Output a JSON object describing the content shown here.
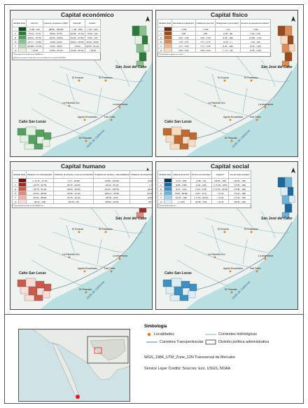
{
  "panels": [
    {
      "id": "eco",
      "title": "Capital económico",
      "table": {
        "headers": [
          "Variable\nNivel",
          "Ahorros*",
          "Ingresos monetarios (USD)*",
          "Vivienda*",
          "Crédito*"
        ],
        "rows": [
          {
            "level": "I",
            "color": "#0c4a1f",
            "cells": [
              "71.95 – 100",
              "(88.66 – 100.00)",
              "(< 60 – 100)",
              "(< 60 – 100)"
            ]
          },
          {
            "level": "II",
            "color": "#2d7b3c",
            "cells": [
              "57.04 – 71.79",
              "88.60 – 87.50",
              "(33.06 – 70.70)",
              "70.00 – 100"
            ]
          },
          {
            "level": "III",
            "color": "#56a062",
            "cells": [
              "(33.34 – 70.76)",
              "(40.50 – 58.00)",
              "(33.06 – 57.84)",
              "70.00 – 100"
            ]
          },
          {
            "level": "IV",
            "color": "#8ac28f",
            "cells": [
              "(12.77 – 71.05)",
              "32.89 – 64.00",
              "(30.00 – 40.50)",
              "30.00 – 54.00"
            ]
          },
          {
            "level": "V",
            "color": "#b8dcb9",
            "cells": [
              "(18.000 – 27.45)",
              "34.50 – 58.00",
              "< 25.00",
              "(40.50 – 51.12)"
            ]
          },
          {
            "level": "VI",
            "color": "#e2f2e1",
            "cells": [
              "< 12.00",
              "(70.50 – 32.76)",
              "(12.00 – 32.10)",
              "< 23.00"
            ]
          }
        ],
        "notes": [
          "*Porcentaje de la población de la AGEB con …",
          "Elaboración propia con datos del Censo de Población y Vivienda 2020 INEGI"
        ]
      },
      "ramp": [
        "#0c4a1f",
        "#2d7b3c",
        "#56a062",
        "#8ac28f",
        "#b8dcb9",
        "#e2f2e1"
      ]
    },
    {
      "id": "fis",
      "title": "Capital físico",
      "table": {
        "headers": [
          "Variable\nNivel",
          "Densidad de habitantes*",
          "Calidad de piso fino*",
          "Refrigerador (porcentaje)*",
          "Servicio de saneamiento básico*"
        ],
        "rows": [
          {
            "level": "I",
            "color": "#6b2d0c",
            "cells": [
              "> 5.00",
              "> 6.00",
              "> 10",
              "> 5.00"
            ]
          },
          {
            "level": "II",
            "color": "#9a4a1c",
            "cells": [
              "3.86",
              "3.86",
              "(1.35 – 95)",
              "1.00 – 2.00"
            ]
          },
          {
            "level": "III",
            "color": "#c06a32",
            "cells": [
              "3.00 – 3.48",
              "3.00 – 3.48",
              "(1.35 – 100)",
              "(1.502 – 1.00)"
            ]
          },
          {
            "level": "IV",
            "color": "#d98e5a",
            "cells": [
              "1.76 – 2.76",
              "1.77 – 2.76",
              "(1.25 – 1.)",
              "1.30 – 100"
            ]
          },
          {
            "level": "V",
            "color": "#ecb88e",
            "cells": [
              "1.77 – 4.25",
              "1.77 – 4.25",
              "(1.25 – 100)",
              "(0.75 – 1.20)"
            ]
          },
          {
            "level": "VI",
            "color": "#f8dcc2",
            "cells": [
              "0.63 – 0.20",
              "0.63 – 0.20",
              "(< 1.1 – 20)",
              "(1.25 – 1.30)"
            ]
          }
        ],
        "notes": [
          "*Promedio de ocupantes por cuarto …"
        ]
      },
      "ramp": [
        "#6b2d0c",
        "#9a4a1c",
        "#c06a32",
        "#d98e5a",
        "#ecb88e",
        "#f8dcc2"
      ]
    },
    {
      "id": "hum",
      "title": "Capital humano",
      "table": {
        "headers": [
          "Variable\nNivel",
          "Población con discapacidad*",
          "Población de 15 años y más sin escolaridad",
          "Población de 15 años y más analfabeta",
          "Población sin derechohabiencia a servicios de salud*"
        ],
        "rows": [
          {
            "level": "I",
            "color": "#7a1212",
            "cells": [
              "(< 10.75 – 11.76)",
              "(7.17 – 22.00)",
              "(23.86 – 100.00)",
              "(14.00 – 18.40)"
            ]
          },
          {
            "level": "II",
            "color": "#a52a2a",
            "cells": [
              "(10.75 – 50.78)",
              "(26.72 – 20.25)",
              "(40.10 – 60.10)",
              "(< 01 – 120)"
            ]
          },
          {
            "level": "III",
            "color": "#c85a4e",
            "cells": [
              "(10.75 – 50.14)",
              "(18.03 – 30.25)",
              "(40.10 – 100.75)",
              "(18.10 – 18.20)"
            ]
          },
          {
            "level": "IV",
            "color": "#e08a7c",
            "cells": [
              "(23.31 – 89.90)",
              "(18.36 – 21.10)",
              "(400.11 – 18.00)",
              "(10.65 – 40.100)"
            ]
          },
          {
            "level": "V",
            "color": "#eeb5aa",
            "cells": [
              "(53.30 – 88.90)",
              "(75.75 – 20.10)",
              "(90.55 – 20.0)",
              "(129.35 – 18.0)"
            ]
          },
          {
            "level": "VI",
            "color": "#f8dcd5",
            "cells": [
              "(30.12 – 162)",
              "(20.18 – 48)",
              "(68.90 – 30.00)",
              "(25.35 – 1.02)"
            ]
          }
        ],
        "notes": [
          "*Porcentaje de la población de la AGEB con …"
        ]
      },
      "ramp": [
        "#7a1212",
        "#a52a2a",
        "#c85a4e",
        "#e08a7c",
        "#eeb5aa",
        "#f8dcd5"
      ]
    },
    {
      "id": "soc",
      "title": "Capital social",
      "table": {
        "headers": [
          "Variable\nNivel",
          "Jefatura femenina*",
          "Número de viviendas*",
          "Hogares*",
          "Uso de redes sociales*"
        ],
        "rows": [
          {
            "level": "I",
            "color": "#0b3a5e",
            "cells": [
              "(0.10 – 100)",
              "(0.48 – 1.9)",
              "(30.35 – 100)",
              "(30.45 – 100)"
            ]
          },
          {
            "level": "II",
            "color": "#1d6a9a",
            "cells": [
              "(0.98 – 2.98)",
              "(1.44 – 100)",
              "(< 27.20 – 30.5)",
              "(17.95 – 100)"
            ]
          },
          {
            "level": "III",
            "color": "#3d90c2",
            "cells": [
              "(2.21 – 3.21)",
              "(1.04 – 0.22)",
              "(< 27.25 – 30.41)",
              "(71.95 – 100)"
            ]
          },
          {
            "level": "IV",
            "color": "#6fb2d8",
            "cells": [
              "75.00 – 83.96)",
              "(0.51 – 07.4)",
              "< 27.20",
              "(71.24 – 100)"
            ]
          },
          {
            "level": "V",
            "color": "#a8d2ea",
            "cells": [
              "(10.35 – 100)",
              "(< 0.7(0 – 81.50)",
              "< 27.20",
              "(77.46 – 100)"
            ]
          },
          {
            "level": "VI",
            "color": "#dbeef7",
            "cells": [
              "(< 10.8)",
              "(10.56 – 100)",
              "< 21.10",
              "(25.35 – 100)"
            ]
          }
        ],
        "notes": [
          "*Porcentaje de población …"
        ]
      },
      "ramp": [
        "#0b3a5e",
        "#1d6a9a",
        "#3d90c2",
        "#6fb2d8",
        "#a8d2ea",
        "#dbeef7"
      ]
    }
  ],
  "map_labels": {
    "san_jose": "San José del Cabo",
    "cabo_san_lucas": "Cabo San Lucas",
    "golfo": "Golfo de California",
    "places": [
      "El Encinal",
      "El Encinalito",
      "La Palmilla Oro",
      "La Angostura",
      "Aguila Encantado",
      "Los Tules",
      "El Pescado"
    ]
  },
  "legend": {
    "title": "Simbología",
    "localidades": "Localidades",
    "corrientes": "Corrientes hidrológicas",
    "carretera": "Carretera Transpeninsular",
    "division": "División política administrativa",
    "crs": "WGS_1984_UTM_Zone_12N Transversal de Mercator",
    "credits": "Service Layer Credits: Sources: Esri, USGS, NOAA"
  },
  "colors": {
    "water": "#b9dfe0",
    "land": "#eef3ef",
    "river": "#8fb0c7",
    "road": "#7a8ea8",
    "locality": "#e07a1a"
  }
}
